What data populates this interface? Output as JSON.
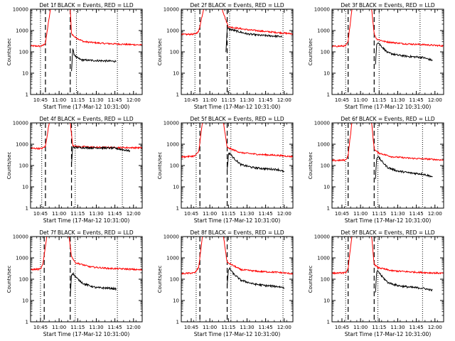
{
  "figure": {
    "xlabel": "Start Time (17-Mar-12 10:31:00)",
    "ylabel": "Counts/sec",
    "colors": {
      "events": "#000000",
      "lld": "#ff0000",
      "axis": "#000000"
    }
  },
  "chart_data": [
    {
      "type": "line",
      "title": "Det 1f BLACK = Events, RED = LLD",
      "xlabel": "Start Time (17-Mar-12 10:31:00)",
      "ylabel": "Counts/sec",
      "xlim": [
        "10:37",
        "12:07"
      ],
      "ylim": [
        1,
        10000
      ],
      "yscale": "log",
      "x_ticks": [
        "10:45",
        "11:00",
        "11:15",
        "11:30",
        "11:45",
        "12:00"
      ],
      "y_ticks": [
        "1",
        "10",
        "100",
        "1000",
        "10000"
      ],
      "dashed_lines": [
        "10:49",
        "11:09"
      ],
      "dotted_lines": [
        "10:45",
        "11:14",
        "11:47"
      ],
      "series": [
        {
          "style": "red",
          "x": [
            "10:37",
            "10:45",
            "10:47",
            "10:49",
            "10:53",
            "11:09",
            "11:10",
            "11:13",
            "11:20",
            "11:35",
            "11:50",
            "12:07"
          ],
          "y": [
            190,
            185,
            200,
            260,
            10000,
            10000,
            700,
            480,
            300,
            250,
            230,
            210
          ]
        },
        {
          "style": "black",
          "x": [
            "11:10",
            "11:11",
            "11:12",
            "11:14",
            "11:18",
            "11:25",
            "11:35",
            "11:46"
          ],
          "y": [
            13,
            140,
            80,
            55,
            42,
            40,
            38,
            36
          ]
        }
      ]
    },
    {
      "type": "line",
      "title": "Det 2f BLACK = Events, RED = LLD",
      "xlabel": "Start Time (17-Mar-12 10:31:00)",
      "ylabel": "Counts/sec",
      "xlim": [
        "10:37",
        "12:07"
      ],
      "ylim": [
        1,
        10000
      ],
      "yscale": "log",
      "x_ticks": [
        "10:45",
        "11:00",
        "11:15",
        "11:30",
        "11:45",
        "12:00"
      ],
      "y_ticks": [
        "1",
        "10",
        "100",
        "1000",
        "10000"
      ],
      "dashed_lines": [
        "10:52",
        "11:14"
      ],
      "dotted_lines": [
        "10:48",
        "11:16",
        "11:59"
      ],
      "series": [
        {
          "style": "red",
          "x": [
            "10:37",
            "10:48",
            "10:51",
            "10:55",
            "11:10",
            "11:13",
            "11:15",
            "11:30",
            "11:45",
            "12:07"
          ],
          "y": [
            650,
            680,
            900,
            10000,
            10000,
            3000,
            1500,
            1100,
            900,
            700
          ]
        },
        {
          "style": "black",
          "x": [
            "11:13",
            "11:14",
            "11:15",
            "11:20",
            "11:30",
            "11:40",
            "11:50",
            "11:58"
          ],
          "y": [
            90,
            1300,
            1200,
            1000,
            700,
            600,
            560,
            520
          ]
        }
      ]
    },
    {
      "type": "line",
      "title": "Det 3f BLACK = Events, RED = LLD",
      "xlabel": "Start Time (17-Mar-12 10:31:00)",
      "ylabel": "Counts/sec",
      "xlim": [
        "10:37",
        "12:07"
      ],
      "ylim": [
        1,
        10000
      ],
      "yscale": "log",
      "x_ticks": [
        "10:45",
        "11:00",
        "11:15",
        "11:30",
        "11:45",
        "12:00"
      ],
      "y_ticks": [
        "1",
        "10",
        "100",
        "1000",
        "10000"
      ],
      "dashed_lines": [
        "10:50",
        "11:11"
      ],
      "dotted_lines": [
        "10:48",
        "11:15",
        "11:48"
      ],
      "series": [
        {
          "style": "red",
          "x": [
            "10:37",
            "10:48",
            "10:50",
            "10:53",
            "11:09",
            "11:11",
            "11:13",
            "11:20",
            "11:35",
            "11:50",
            "12:07"
          ],
          "y": [
            180,
            190,
            300,
            10000,
            10000,
            700,
            400,
            300,
            240,
            220,
            190
          ]
        },
        {
          "style": "black",
          "x": [
            "11:12",
            "11:13",
            "11:14",
            "11:17",
            "11:22",
            "11:30",
            "11:40",
            "11:50",
            "11:58"
          ],
          "y": [
            25,
            240,
            280,
            180,
            90,
            70,
            60,
            55,
            40
          ]
        }
      ]
    },
    {
      "type": "line",
      "title": "Det 4f BLACK = Events, RED = LLD",
      "xlabel": "Start Time (17-Mar-12 10:31:00)",
      "ylabel": "Counts/sec",
      "xlim": [
        "10:37",
        "12:07"
      ],
      "ylim": [
        1,
        10000
      ],
      "yscale": "log",
      "x_ticks": [
        "10:45",
        "11:00",
        "11:15",
        "11:30",
        "11:45",
        "12:00"
      ],
      "y_ticks": [
        "1",
        "10",
        "100",
        "1000",
        "10000"
      ],
      "dashed_lines": [
        "10:49",
        "11:10"
      ],
      "dotted_lines": [
        "10:46",
        "11:13",
        "11:51"
      ],
      "series": [
        {
          "style": "red",
          "x": [
            "10:37",
            "10:46",
            "10:49",
            "10:52",
            "11:09",
            "11:11",
            "11:14",
            "11:30",
            "11:45",
            "12:07"
          ],
          "y": [
            650,
            620,
            800,
            10000,
            10000,
            900,
            780,
            720,
            700,
            680
          ]
        },
        {
          "style": "black",
          "x": [
            "11:10",
            "11:11",
            "11:12",
            "11:15",
            "11:25",
            "11:35",
            "11:45",
            "11:57"
          ],
          "y": [
            120,
            750,
            720,
            700,
            680,
            670,
            650,
            480
          ]
        }
      ]
    },
    {
      "type": "line",
      "title": "Det 5f BLACK = Events, RED = LLD",
      "xlabel": "Start Time (17-Mar-12 10:31:00)",
      "ylabel": "Counts/sec",
      "xlim": [
        "10:37",
        "12:07"
      ],
      "ylim": [
        1,
        10000
      ],
      "yscale": "log",
      "x_ticks": [
        "10:45",
        "11:00",
        "11:15",
        "11:30",
        "11:45",
        "12:00"
      ],
      "y_ticks": [
        "1",
        "10",
        "100",
        "1000",
        "10000"
      ],
      "dashed_lines": [
        "10:52",
        "11:14"
      ],
      "dotted_lines": [
        "10:49",
        "11:17",
        "11:59"
      ],
      "series": [
        {
          "style": "red",
          "x": [
            "10:37",
            "10:48",
            "10:51",
            "10:54",
            "11:11",
            "11:14",
            "11:17",
            "11:25",
            "11:40",
            "11:55",
            "12:07"
          ],
          "y": [
            250,
            280,
            450,
            10000,
            10000,
            700,
            600,
            400,
            330,
            300,
            260
          ]
        },
        {
          "style": "black",
          "x": [
            "11:14",
            "11:15",
            "11:16",
            "11:19",
            "11:25",
            "11:35",
            "11:45",
            "11:55",
            "12:00"
          ],
          "y": [
            60,
            330,
            380,
            230,
            110,
            80,
            70,
            65,
            50
          ]
        }
      ]
    },
    {
      "type": "line",
      "title": "Det 6f BLACK = Events, RED = LLD",
      "xlabel": "Start Time (17-Mar-12 10:31:00)",
      "ylabel": "Counts/sec",
      "xlim": [
        "10:37",
        "12:07"
      ],
      "ylim": [
        1,
        10000
      ],
      "yscale": "log",
      "x_ticks": [
        "10:45",
        "11:00",
        "11:15",
        "11:30",
        "11:45",
        "12:00"
      ],
      "y_ticks": [
        "1",
        "10",
        "100",
        "1000",
        "10000"
      ],
      "dashed_lines": [
        "10:50",
        "11:11"
      ],
      "dotted_lines": [
        "10:48",
        "11:14",
        "11:50"
      ],
      "series": [
        {
          "style": "red",
          "x": [
            "10:37",
            "10:48",
            "10:50",
            "10:53",
            "11:09",
            "11:11",
            "11:14",
            "11:25",
            "11:40",
            "11:55",
            "12:07"
          ],
          "y": [
            170,
            180,
            300,
            10000,
            10000,
            600,
            400,
            260,
            220,
            200,
            180
          ]
        },
        {
          "style": "black",
          "x": [
            "11:12",
            "11:13",
            "11:14",
            "11:17",
            "11:22",
            "11:30",
            "11:40",
            "11:50",
            "11:58"
          ],
          "y": [
            25,
            220,
            270,
            160,
            80,
            55,
            45,
            40,
            30
          ]
        }
      ]
    },
    {
      "type": "line",
      "title": "Det 7f BLACK = Events, RED = LLD",
      "xlabel": "Start Time (17-Mar-12 10:31:00)",
      "ylabel": "Counts/sec",
      "xlim": [
        "10:37",
        "12:07"
      ],
      "ylim": [
        1,
        10000
      ],
      "yscale": "log",
      "x_ticks": [
        "10:45",
        "11:00",
        "11:15",
        "11:30",
        "11:45",
        "12:00"
      ],
      "y_ticks": [
        "1",
        "10",
        "100",
        "1000",
        "10000"
      ],
      "dashed_lines": [
        "10:48",
        "11:09"
      ],
      "dotted_lines": [
        "10:45",
        "11:13",
        "11:47"
      ],
      "series": [
        {
          "style": "red",
          "x": [
            "10:37",
            "10:45",
            "10:47",
            "10:50",
            "11:08",
            "11:10",
            "11:13",
            "11:25",
            "11:40",
            "11:55",
            "12:07"
          ],
          "y": [
            280,
            300,
            500,
            10000,
            10000,
            1200,
            600,
            380,
            320,
            300,
            270
          ]
        },
        {
          "style": "black",
          "x": [
            "11:09",
            "11:10",
            "11:11",
            "11:15",
            "11:20",
            "11:30",
            "11:40",
            "11:46"
          ],
          "y": [
            15,
            160,
            190,
            100,
            60,
            40,
            38,
            35
          ]
        }
      ]
    },
    {
      "type": "line",
      "title": "Det 8f BLACK = Events, RED = LLD",
      "xlabel": "Start Time (17-Mar-12 10:31:00)",
      "ylabel": "Counts/sec",
      "xlim": [
        "10:37",
        "12:07"
      ],
      "ylim": [
        1,
        10000
      ],
      "yscale": "log",
      "x_ticks": [
        "10:45",
        "11:00",
        "11:15",
        "11:30",
        "11:45",
        "12:00"
      ],
      "y_ticks": [
        "1",
        "10",
        "100",
        "1000",
        "10000"
      ],
      "dashed_lines": [
        "10:52",
        "11:14"
      ],
      "dotted_lines": [
        "10:49",
        "11:17",
        "11:59"
      ],
      "series": [
        {
          "style": "red",
          "x": [
            "10:37",
            "10:48",
            "10:51",
            "10:54",
            "11:11",
            "11:14",
            "11:17",
            "11:25",
            "11:40",
            "11:55",
            "12:07"
          ],
          "y": [
            180,
            200,
            350,
            10000,
            10000,
            600,
            500,
            280,
            230,
            210,
            180
          ]
        },
        {
          "style": "black",
          "x": [
            "11:14",
            "11:15",
            "11:16",
            "11:19",
            "11:25",
            "11:35",
            "11:45",
            "11:55",
            "12:00"
          ],
          "y": [
            50,
            280,
            320,
            180,
            90,
            60,
            50,
            45,
            40
          ]
        }
      ]
    },
    {
      "type": "line",
      "title": "Det 9f BLACK = Events, RED = LLD",
      "xlabel": "Start Time (17-Mar-12 10:31:00)",
      "ylabel": "Counts/sec",
      "xlim": [
        "10:37",
        "12:07"
      ],
      "ylim": [
        1,
        10000
      ],
      "yscale": "log",
      "x_ticks": [
        "10:45",
        "11:00",
        "11:15",
        "11:30",
        "11:45",
        "12:00"
      ],
      "y_ticks": [
        "1",
        "10",
        "100",
        "1000",
        "10000"
      ],
      "dashed_lines": [
        "10:50",
        "11:11"
      ],
      "dotted_lines": [
        "10:48",
        "11:14",
        "11:50"
      ],
      "series": [
        {
          "style": "red",
          "x": [
            "10:37",
            "10:48",
            "10:50",
            "10:53",
            "11:09",
            "11:11",
            "11:14",
            "11:25",
            "11:40",
            "11:55",
            "12:07"
          ],
          "y": [
            190,
            200,
            320,
            10000,
            10000,
            500,
            350,
            250,
            220,
            200,
            190
          ]
        },
        {
          "style": "black",
          "x": [
            "11:12",
            "11:13",
            "11:14",
            "11:17",
            "11:22",
            "11:30",
            "11:40",
            "11:50",
            "11:58"
          ],
          "y": [
            25,
            200,
            250,
            140,
            70,
            50,
            42,
            38,
            30
          ]
        }
      ]
    }
  ]
}
